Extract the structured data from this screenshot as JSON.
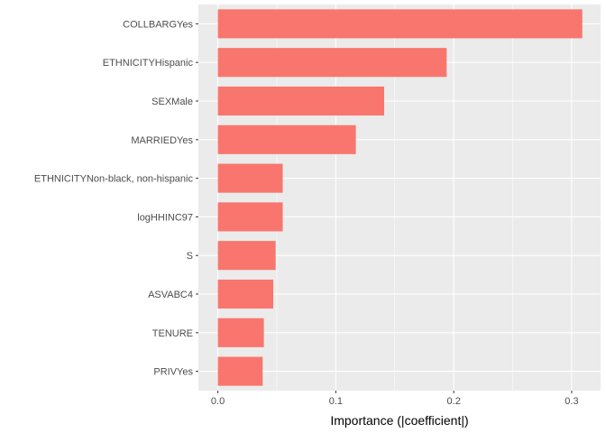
{
  "chart_data": {
    "type": "bar",
    "orientation": "horizontal",
    "categories": [
      "COLLBARGYes",
      "ETHNICITYHispanic",
      "SEXMale",
      "MARRIEDYes",
      "ETHNICITYNon-black, non-hispanic",
      "logHHINC97",
      "S",
      "ASVABC4",
      "TENURE",
      "PRIVYes"
    ],
    "values": [
      0.309,
      0.194,
      0.141,
      0.117,
      0.055,
      0.055,
      0.049,
      0.047,
      0.039,
      0.038
    ],
    "xlabel": "Importance (|coefficient|)",
    "ylabel": "",
    "xlim": [
      -0.0165,
      0.3245
    ],
    "xticks": [
      "0.0",
      "0.1",
      "0.2",
      "0.3"
    ],
    "xtick_values": [
      0.0,
      0.1,
      0.2,
      0.3
    ],
    "grid": true,
    "legend": "none",
    "colors": {
      "bar": "#F8766D",
      "panel": "#EBEBEB",
      "grid": "#FFFFFF"
    }
  }
}
